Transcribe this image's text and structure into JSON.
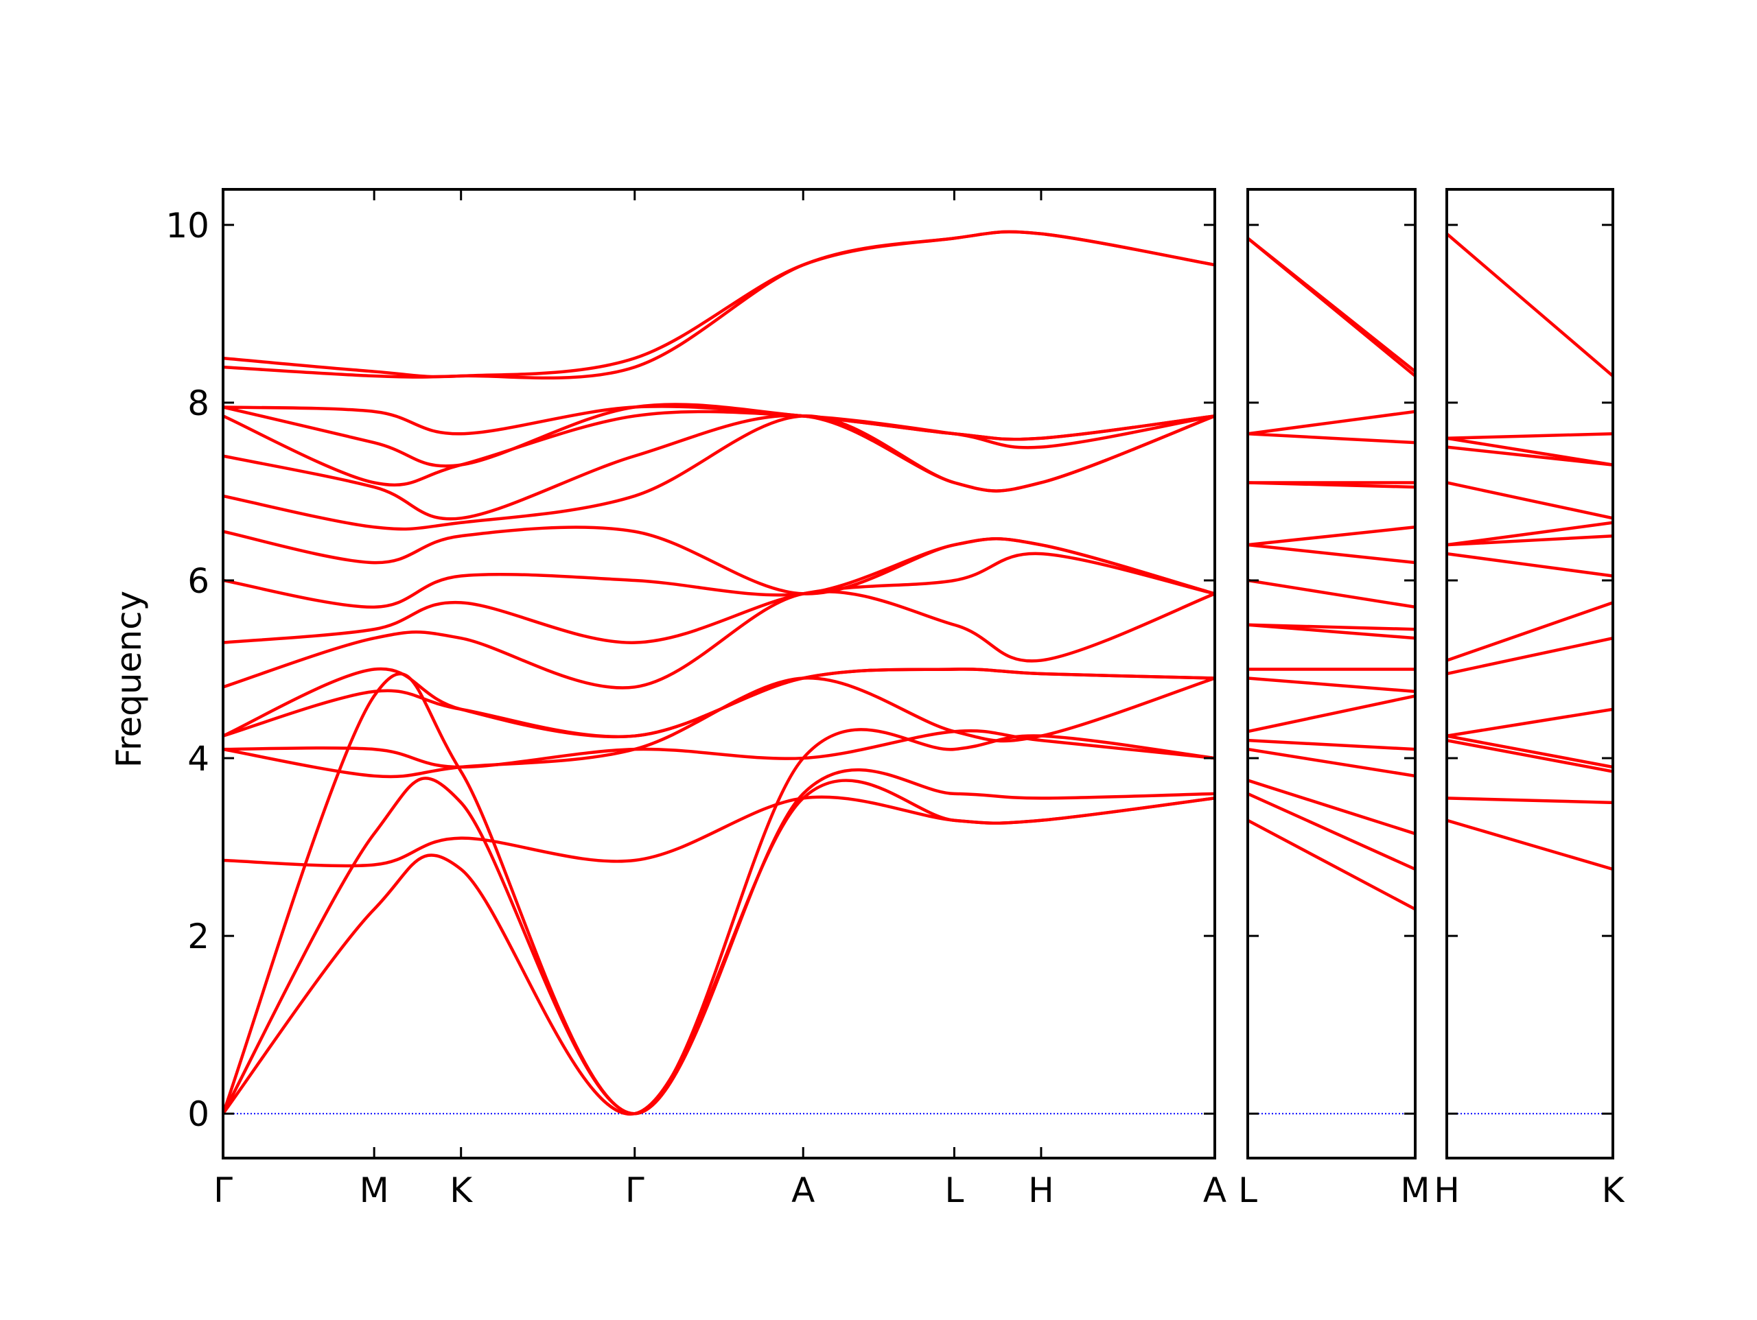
{
  "chart_data": {
    "type": "line",
    "title": "",
    "ylabel": "Frequency",
    "ylim": [
      -0.5,
      10.4
    ],
    "yticks": [
      0,
      2,
      4,
      6,
      8,
      10
    ],
    "ytick_labels": [
      "0",
      "2",
      "4",
      "6",
      "8",
      "10"
    ],
    "zero_line_color": "#0000ff",
    "band_color": "#ff0000",
    "panels": [
      {
        "segments": [
          {
            "from": "Γ",
            "to": "M",
            "length": 0.87
          },
          {
            "from": "M",
            "to": "K",
            "length": 0.5
          },
          {
            "from": "K",
            "to": "Γ",
            "length": 1.0
          },
          {
            "from": "Γ",
            "to": "A",
            "length": 0.97
          },
          {
            "from": "A",
            "to": "L",
            "length": 0.87
          },
          {
            "from": "L",
            "to": "H",
            "length": 0.5
          },
          {
            "from": "H",
            "to": "A",
            "length": 1.0
          }
        ],
        "tick_labels": [
          "Γ",
          "M",
          "K",
          "Γ",
          "A",
          "L",
          "H",
          "A"
        ],
        "bands": [
          {
            "x": [
              0,
              0.87,
              1.37,
              2.37,
              3.34,
              4.21,
              4.71,
              5.71
            ],
            "y": [
              0,
              2.3,
              2.75,
              0,
              3.55,
              3.3,
              3.3,
              3.55
            ]
          },
          {
            "x": [
              0,
              0.87,
              1.37,
              2.37,
              3.34,
              4.21,
              4.71,
              5.71
            ],
            "y": [
              0,
              3.15,
              3.5,
              0,
              3.6,
              3.6,
              3.55,
              3.6
            ]
          },
          {
            "x": [
              0,
              0.87,
              1.37,
              2.37,
              3.34,
              4.21,
              4.71,
              5.71
            ],
            "y": [
              0,
              4.7,
              3.85,
              0,
              4.0,
              4.1,
              4.25,
              4.0
            ]
          },
          {
            "x": [
              0,
              0.87,
              1.37,
              2.37,
              3.34,
              4.21,
              4.71,
              5.71
            ],
            "y": [
              2.85,
              2.8,
              3.1,
              2.85,
              3.55,
              3.3,
              3.3,
              3.55
            ]
          },
          {
            "x": [
              0,
              0.87,
              1.37,
              2.37,
              3.34,
              4.21,
              4.71,
              5.71
            ],
            "y": [
              4.1,
              4.1,
              3.9,
              4.1,
              4.0,
              4.3,
              4.2,
              4.0
            ]
          },
          {
            "x": [
              0,
              0.87,
              1.37,
              2.37,
              3.34,
              4.21,
              4.71,
              5.71
            ],
            "y": [
              4.1,
              3.8,
              3.9,
              4.1,
              4.9,
              4.3,
              4.25,
              4.9
            ]
          },
          {
            "x": [
              0,
              0.87,
              1.37,
              2.37,
              3.34,
              4.21,
              4.71,
              5.71
            ],
            "y": [
              4.25,
              4.75,
              4.55,
              4.25,
              4.9,
              5.0,
              4.95,
              4.9
            ]
          },
          {
            "x": [
              0,
              0.87,
              1.37,
              2.37,
              3.34,
              4.21,
              4.71,
              5.71
            ],
            "y": [
              4.25,
              5.0,
              4.55,
              4.25,
              4.9,
              5.0,
              4.95,
              4.9
            ]
          },
          {
            "x": [
              0,
              0.87,
              1.37,
              2.37,
              3.34,
              4.21,
              4.71,
              5.71
            ],
            "y": [
              4.8,
              5.35,
              5.35,
              4.8,
              5.85,
              5.5,
              5.1,
              5.85
            ]
          },
          {
            "x": [
              0,
              0.87,
              1.37,
              2.37,
              3.34,
              4.21,
              4.71,
              5.71
            ],
            "y": [
              5.3,
              5.45,
              5.75,
              5.3,
              5.85,
              6.0,
              6.3,
              5.85
            ]
          },
          {
            "x": [
              0,
              0.87,
              1.37,
              2.37,
              3.34,
              4.21,
              4.71,
              5.71
            ],
            "y": [
              6.0,
              5.7,
              6.05,
              6.0,
              5.85,
              6.4,
              6.4,
              5.85
            ]
          },
          {
            "x": [
              0,
              0.87,
              1.37,
              2.37,
              3.34,
              4.21,
              4.71,
              5.71
            ],
            "y": [
              6.55,
              6.2,
              6.5,
              6.55,
              5.85,
              6.4,
              6.4,
              5.85
            ]
          },
          {
            "x": [
              0,
              0.87,
              1.37,
              2.37,
              3.34,
              4.21,
              4.71,
              5.71
            ],
            "y": [
              6.95,
              6.6,
              6.65,
              6.95,
              7.85,
              7.1,
              7.1,
              7.85
            ]
          },
          {
            "x": [
              0,
              0.87,
              1.37,
              2.37,
              3.34,
              4.21,
              4.71,
              5.71
            ],
            "y": [
              7.4,
              7.05,
              6.7,
              7.4,
              7.85,
              7.1,
              7.1,
              7.85
            ]
          },
          {
            "x": [
              0,
              0.87,
              1.37,
              2.37,
              3.34,
              4.21,
              4.71,
              5.71
            ],
            "y": [
              7.85,
              7.1,
              7.3,
              7.85,
              7.85,
              7.65,
              7.5,
              7.85
            ]
          },
          {
            "x": [
              0,
              0.87,
              1.37,
              2.37,
              3.34,
              4.21,
              4.71,
              5.71
            ],
            "y": [
              7.95,
              7.55,
              7.3,
              7.95,
              7.85,
              7.65,
              7.6,
              7.85
            ]
          },
          {
            "x": [
              0,
              0.87,
              1.37,
              2.37,
              3.34,
              4.21,
              4.71,
              5.71
            ],
            "y": [
              7.95,
              7.9,
              7.65,
              7.95,
              7.85,
              7.65,
              7.6,
              7.85
            ]
          },
          {
            "x": [
              0,
              0.87,
              1.37,
              2.37,
              3.34,
              4.21,
              4.71,
              5.71
            ],
            "y": [
              8.4,
              8.3,
              8.3,
              8.4,
              9.55,
              9.85,
              9.9,
              9.55
            ]
          },
          {
            "x": [
              0,
              0.87,
              1.37,
              2.37,
              3.34,
              4.21,
              4.71,
              5.71
            ],
            "y": [
              8.5,
              8.35,
              8.3,
              8.5,
              9.55,
              9.85,
              9.9,
              9.55
            ]
          }
        ]
      },
      {
        "segments": [
          {
            "from": "L",
            "to": "M",
            "length": 0.97
          }
        ],
        "tick_labels": [
          "L",
          "M"
        ],
        "bands": [
          {
            "x": [
              0,
              0.97
            ],
            "y": [
              3.3,
              2.3
            ]
          },
          {
            "x": [
              0,
              0.97
            ],
            "y": [
              3.6,
              2.75
            ]
          },
          {
            "x": [
              0,
              0.97
            ],
            "y": [
              3.75,
              3.15
            ]
          },
          {
            "x": [
              0,
              0.97
            ],
            "y": [
              4.1,
              3.8
            ]
          },
          {
            "x": [
              0,
              0.97
            ],
            "y": [
              4.2,
              4.1
            ]
          },
          {
            "x": [
              0,
              0.97
            ],
            "y": [
              4.3,
              4.7
            ]
          },
          {
            "x": [
              0,
              0.97
            ],
            "y": [
              4.9,
              4.75
            ]
          },
          {
            "x": [
              0,
              0.97
            ],
            "y": [
              5.0,
              5.0
            ]
          },
          {
            "x": [
              0,
              0.97
            ],
            "y": [
              5.5,
              5.35
            ]
          },
          {
            "x": [
              0,
              0.97
            ],
            "y": [
              5.5,
              5.45
            ]
          },
          {
            "x": [
              0,
              0.97
            ],
            "y": [
              6.0,
              5.7
            ]
          },
          {
            "x": [
              0,
              0.97
            ],
            "y": [
              6.4,
              6.2
            ]
          },
          {
            "x": [
              0,
              0.97
            ],
            "y": [
              6.4,
              6.6
            ]
          },
          {
            "x": [
              0,
              0.97
            ],
            "y": [
              7.1,
              7.05
            ]
          },
          {
            "x": [
              0,
              0.97
            ],
            "y": [
              7.1,
              7.1
            ]
          },
          {
            "x": [
              0,
              0.97
            ],
            "y": [
              7.65,
              7.55
            ]
          },
          {
            "x": [
              0,
              0.97
            ],
            "y": [
              7.65,
              7.9
            ]
          },
          {
            "x": [
              0,
              0.97
            ],
            "y": [
              9.85,
              8.3
            ]
          },
          {
            "x": [
              0,
              0.97
            ],
            "y": [
              9.85,
              8.35
            ]
          }
        ]
      },
      {
        "segments": [
          {
            "from": "H",
            "to": "K",
            "length": 0.97
          }
        ],
        "tick_labels": [
          "H",
          "K"
        ],
        "bands": [
          {
            "x": [
              0,
              0.97
            ],
            "y": [
              3.3,
              2.75
            ]
          },
          {
            "x": [
              0,
              0.97
            ],
            "y": [
              3.55,
              3.5
            ]
          },
          {
            "x": [
              0,
              0.97
            ],
            "y": [
              4.2,
              3.85
            ]
          },
          {
            "x": [
              0,
              0.97
            ],
            "y": [
              4.25,
              3.9
            ]
          },
          {
            "x": [
              0,
              0.97
            ],
            "y": [
              4.25,
              4.55
            ]
          },
          {
            "x": [
              0,
              0.97
            ],
            "y": [
              4.95,
              5.35
            ]
          },
          {
            "x": [
              0,
              0.97
            ],
            "y": [
              5.1,
              5.75
            ]
          },
          {
            "x": [
              0,
              0.97
            ],
            "y": [
              6.3,
              6.05
            ]
          },
          {
            "x": [
              0,
              0.97
            ],
            "y": [
              6.4,
              6.5
            ]
          },
          {
            "x": [
              0,
              0.97
            ],
            "y": [
              6.4,
              6.65
            ]
          },
          {
            "x": [
              0,
              0.97
            ],
            "y": [
              7.1,
              6.7
            ]
          },
          {
            "x": [
              0,
              0.97
            ],
            "y": [
              7.5,
              7.3
            ]
          },
          {
            "x": [
              0,
              0.97
            ],
            "y": [
              7.6,
              7.3
            ]
          },
          {
            "x": [
              0,
              0.97
            ],
            "y": [
              7.6,
              7.65
            ]
          },
          {
            "x": [
              0,
              0.97
            ],
            "y": [
              9.9,
              8.3
            ]
          }
        ]
      }
    ]
  }
}
